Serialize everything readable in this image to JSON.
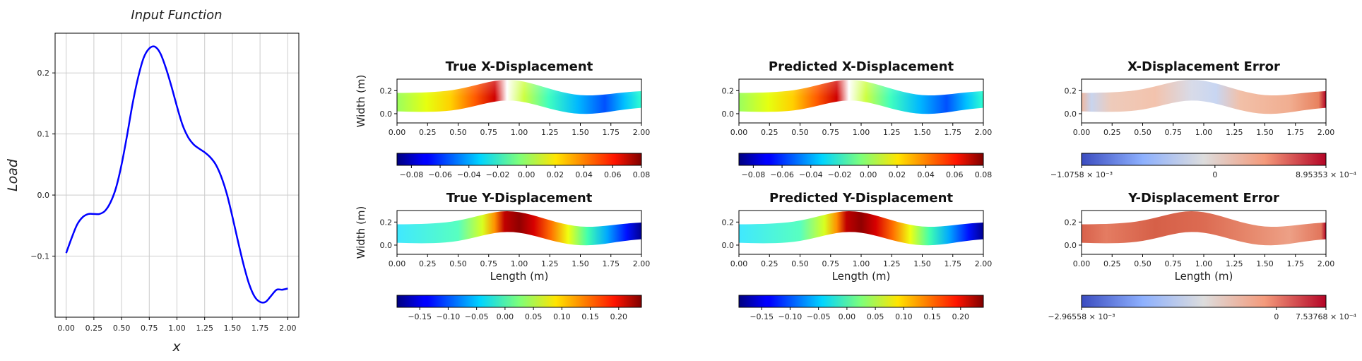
{
  "colors": {
    "line": "#0000ff",
    "grid": "#cccccc",
    "axis": "#000000"
  },
  "chart_data": [
    {
      "type": "line",
      "title": "Input Function",
      "xlabel": "x",
      "ylabel": "Load",
      "xlim": [
        -0.1,
        2.1
      ],
      "ylim": [
        -0.2,
        0.265
      ],
      "xticks": [
        "0.00",
        "0.25",
        "0.50",
        "0.75",
        "1.00",
        "1.25",
        "1.50",
        "1.75",
        "2.00"
      ],
      "yticks": [
        "−0.1",
        "0.0",
        "0.1",
        "0.2"
      ],
      "grid": true,
      "series": [
        {
          "x": [
            0.0,
            0.05,
            0.1,
            0.15,
            0.2,
            0.25,
            0.3,
            0.35,
            0.4,
            0.45,
            0.5,
            0.55,
            0.6,
            0.65,
            0.7,
            0.75,
            0.8,
            0.85,
            0.9,
            0.95,
            1.0,
            1.05,
            1.1,
            1.15,
            1.2,
            1.25,
            1.3,
            1.35,
            1.4,
            1.45,
            1.5,
            1.55,
            1.6,
            1.65,
            1.7,
            1.75,
            1.8,
            1.85,
            1.9,
            1.95,
            2.0
          ],
          "y": [
            -0.095,
            -0.07,
            -0.048,
            -0.036,
            -0.031,
            -0.031,
            -0.031,
            -0.026,
            -0.012,
            0.012,
            0.05,
            0.098,
            0.15,
            0.193,
            0.225,
            0.24,
            0.243,
            0.232,
            0.208,
            0.178,
            0.145,
            0.115,
            0.095,
            0.083,
            0.076,
            0.07,
            0.062,
            0.05,
            0.03,
            0.002,
            -0.035,
            -0.075,
            -0.113,
            -0.145,
            -0.166,
            -0.175,
            -0.175,
            -0.165,
            -0.155,
            -0.155,
            -0.153
          ]
        }
      ]
    },
    {
      "type": "heatmap",
      "title": "True X-Displacement",
      "xlabel": "",
      "ylabel": "Width (m)",
      "xticks": [
        "0.00",
        "0.25",
        "0.50",
        "0.75",
        "1.00",
        "1.25",
        "1.50",
        "1.75",
        "2.00"
      ],
      "yticks": [
        "0.0",
        "0.2"
      ],
      "colormap": "jet",
      "colorbar_ticks": [
        "−0.08",
        "−0.06",
        "−0.04",
        "−0.02",
        "0.00",
        "0.02",
        "0.04",
        "0.06",
        "0.08"
      ],
      "value_range": [
        -0.09,
        0.08
      ]
    },
    {
      "type": "heatmap",
      "title": "Predicted X-Displacement",
      "xlabel": "",
      "ylabel": "",
      "xticks": [
        "0.00",
        "0.25",
        "0.50",
        "0.75",
        "1.00",
        "1.25",
        "1.50",
        "1.75",
        "2.00"
      ],
      "yticks": [
        "0.0",
        "0.2"
      ],
      "colormap": "jet",
      "colorbar_ticks": [
        "−0.08",
        "−0.06",
        "−0.04",
        "−0.02",
        "0.00",
        "0.02",
        "0.04",
        "0.06",
        "0.08"
      ],
      "value_range": [
        -0.09,
        0.08
      ]
    },
    {
      "type": "heatmap",
      "title": "X-Displacement Error",
      "xlabel": "",
      "ylabel": "",
      "xticks": [
        "0.00",
        "0.25",
        "0.50",
        "0.75",
        "1.00",
        "1.25",
        "1.50",
        "1.75",
        "2.00"
      ],
      "yticks": [
        "0.0",
        "0.2"
      ],
      "colormap": "coolwarm",
      "colorbar_ticks": [
        "−1.0758 × 10⁻³",
        "0",
        "8.95353 × 10⁻⁴"
      ],
      "value_range": [
        -0.0010758,
        0.000895353
      ]
    },
    {
      "type": "heatmap",
      "title": "True Y-Displacement",
      "xlabel": "Length (m)",
      "ylabel": "Width (m)",
      "xticks": [
        "0.00",
        "0.25",
        "0.50",
        "0.75",
        "1.00",
        "1.25",
        "1.50",
        "1.75",
        "2.00"
      ],
      "yticks": [
        "0.0",
        "0.2"
      ],
      "colormap": "jet",
      "colorbar_ticks": [
        "−0.15",
        "−0.10",
        "−0.05",
        "0.00",
        "0.05",
        "0.10",
        "0.15",
        "0.20"
      ],
      "value_range": [
        -0.19,
        0.24
      ]
    },
    {
      "type": "heatmap",
      "title": "Predicted Y-Displacement",
      "xlabel": "Length (m)",
      "ylabel": "",
      "xticks": [
        "0.00",
        "0.25",
        "0.50",
        "0.75",
        "1.00",
        "1.25",
        "1.50",
        "1.75",
        "2.00"
      ],
      "yticks": [
        "0.0",
        "0.2"
      ],
      "colormap": "jet",
      "colorbar_ticks": [
        "−0.15",
        "−0.10",
        "−0.05",
        "0.00",
        "0.05",
        "0.10",
        "0.15",
        "0.20"
      ],
      "value_range": [
        -0.19,
        0.24
      ]
    },
    {
      "type": "heatmap",
      "title": "Y-Displacement Error",
      "xlabel": "Length (m)",
      "ylabel": "",
      "xticks": [
        "0.00",
        "0.25",
        "0.50",
        "0.75",
        "1.00",
        "1.25",
        "1.50",
        "1.75",
        "2.00"
      ],
      "yticks": [
        "0.0",
        "0.2"
      ],
      "colormap": "coolwarm",
      "colorbar_ticks": [
        "−2.96558 × 10⁻³",
        "0",
        "7.53768 × 10⁻⁴"
      ],
      "value_range": [
        -0.00296558,
        0.000753768
      ]
    }
  ]
}
